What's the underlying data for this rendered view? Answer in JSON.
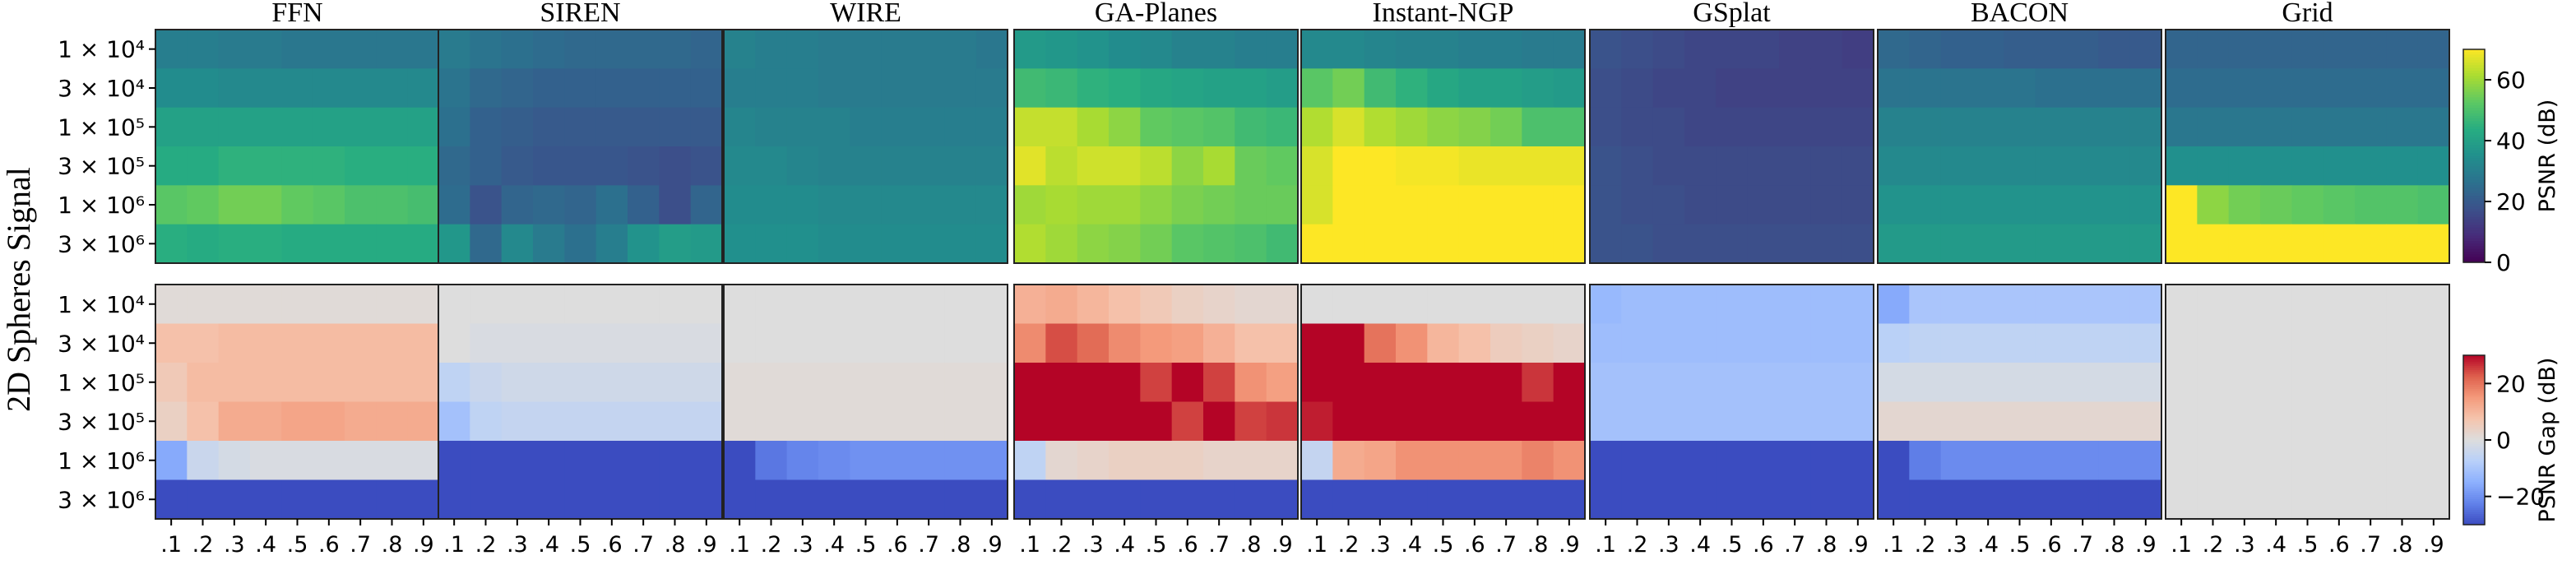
{
  "figure": {
    "row_label": "2D Spheres Signal"
  },
  "chart_data": {
    "type": "heatmap",
    "panels": [
      "FFN",
      "SIREN",
      "WIRE",
      "GA-Planes",
      "Instant-NGP",
      "GSplat",
      "BACON",
      "Grid"
    ],
    "y_tick_labels": [
      "1 × 10⁴",
      "3 × 10⁴",
      "1 × 10⁵",
      "3 × 10⁵",
      "1 × 10⁶",
      "3 × 10⁶"
    ],
    "x_tick_labels": [
      ".1",
      ".2",
      ".3",
      ".4",
      ".5",
      ".6",
      ".7",
      ".8",
      ".9"
    ],
    "psnr": {
      "label": "PSNR (dB)",
      "range": [
        0,
        70
      ],
      "ticks": [
        0,
        20,
        40,
        60
      ],
      "colormap": "viridis",
      "panels": {
        "FFN": [
          [
            30,
            30,
            29,
            29,
            28,
            28,
            28,
            28,
            28
          ],
          [
            34,
            34,
            33,
            33,
            33,
            33,
            33,
            33,
            33
          ],
          [
            40,
            40,
            40,
            40,
            40,
            40,
            40,
            40,
            40
          ],
          [
            43,
            43,
            45,
            45,
            45,
            45,
            44,
            44,
            44
          ],
          [
            52,
            53,
            55,
            55,
            53,
            52,
            50,
            50,
            49
          ],
          [
            44,
            43,
            44,
            44,
            43,
            43,
            43,
            43,
            43
          ]
        ],
        "SIREN": [
          [
            29,
            27,
            26,
            25,
            24,
            24,
            24,
            24,
            23
          ],
          [
            27,
            24,
            23,
            22,
            22,
            22,
            22,
            22,
            22
          ],
          [
            26,
            22,
            21,
            20,
            20,
            20,
            20,
            20,
            20
          ],
          [
            24,
            22,
            20,
            19,
            19,
            19,
            18,
            17,
            18
          ],
          [
            25,
            18,
            23,
            24,
            23,
            26,
            22,
            17,
            23
          ],
          [
            37,
            24,
            33,
            29,
            26,
            30,
            36,
            39,
            38
          ]
        ],
        "WIRE": [
          [
            31,
            30,
            30,
            29,
            29,
            29,
            29,
            29,
            28
          ],
          [
            30,
            30,
            30,
            29,
            29,
            29,
            29,
            29,
            29
          ],
          [
            32,
            31,
            31,
            31,
            30,
            30,
            30,
            30,
            30
          ],
          [
            33,
            33,
            32,
            31,
            31,
            31,
            31,
            31,
            31
          ],
          [
            34,
            34,
            34,
            33,
            33,
            33,
            33,
            33,
            33
          ],
          [
            35,
            35,
            35,
            34,
            34,
            34,
            34,
            34,
            34
          ]
        ],
        "GA-Planes": [
          [
            38,
            37,
            36,
            34,
            33,
            31,
            31,
            30,
            30
          ],
          [
            48,
            47,
            45,
            44,
            42,
            41,
            40,
            40,
            39
          ],
          [
            64,
            64,
            61,
            58,
            53,
            52,
            51,
            48,
            47
          ],
          [
            67,
            63,
            65,
            65,
            63,
            58,
            61,
            54,
            53
          ],
          [
            60,
            61,
            60,
            60,
            58,
            56,
            55,
            54,
            54
          ],
          [
            62,
            60,
            58,
            57,
            55,
            52,
            51,
            50,
            48
          ]
        ],
        "Instant-NGP": [
          [
            33,
            33,
            32,
            31,
            31,
            30,
            30,
            29,
            29
          ],
          [
            52,
            55,
            48,
            45,
            42,
            40,
            40,
            39,
            38
          ],
          [
            62,
            66,
            62,
            60,
            58,
            57,
            55,
            50,
            50
          ],
          [
            66,
            70,
            70,
            69,
            69,
            68,
            68,
            68,
            68
          ],
          [
            66,
            70,
            70,
            70,
            70,
            70,
            70,
            70,
            70
          ],
          [
            70,
            70,
            70,
            70,
            70,
            70,
            70,
            70,
            70
          ]
        ],
        "GSplat": [
          [
            18,
            17,
            16,
            15,
            15,
            15,
            14,
            14,
            13
          ],
          [
            17,
            16,
            15,
            15,
            14,
            14,
            14,
            14,
            14
          ],
          [
            17,
            16,
            16,
            15,
            15,
            15,
            15,
            15,
            15
          ],
          [
            18,
            17,
            16,
            16,
            16,
            16,
            16,
            16,
            16
          ],
          [
            18,
            17,
            17,
            16,
            16,
            16,
            16,
            16,
            16
          ],
          [
            18,
            18,
            17,
            17,
            17,
            17,
            17,
            17,
            17
          ]
        ],
        "BACON": [
          [
            24,
            23,
            22,
            22,
            21,
            21,
            21,
            20,
            20
          ],
          [
            27,
            27,
            27,
            27,
            27,
            26,
            26,
            26,
            26
          ],
          [
            31,
            31,
            31,
            31,
            31,
            31,
            31,
            31,
            31
          ],
          [
            33,
            33,
            33,
            33,
            33,
            33,
            33,
            33,
            33
          ],
          [
            36,
            36,
            36,
            36,
            36,
            36,
            36,
            36,
            36
          ],
          [
            38,
            38,
            38,
            38,
            38,
            38,
            38,
            38,
            38
          ]
        ],
        "Grid": [
          [
            23,
            23,
            23,
            23,
            23,
            23,
            23,
            23,
            23
          ],
          [
            25,
            25,
            25,
            25,
            25,
            25,
            25,
            25,
            25
          ],
          [
            28,
            28,
            28,
            28,
            28,
            28,
            28,
            28,
            28
          ],
          [
            35,
            35,
            35,
            35,
            35,
            35,
            35,
            35,
            35
          ],
          [
            70,
            58,
            55,
            54,
            53,
            52,
            51,
            51,
            50
          ],
          [
            70,
            70,
            70,
            70,
            70,
            70,
            70,
            70,
            70
          ]
        ]
      }
    },
    "gap": {
      "label": "PSNR Gap (dB)",
      "range": [
        -30,
        30
      ],
      "ticks": [
        -20,
        0,
        20
      ],
      "colormap": "coolwarm",
      "panels": {
        "FFN": [
          [
            1,
            1,
            1,
            1,
            1,
            1,
            1,
            1,
            1
          ],
          [
            8,
            8,
            9,
            9,
            9,
            9,
            9,
            9,
            9
          ],
          [
            6,
            9,
            9,
            9,
            9,
            9,
            9,
            9,
            9
          ],
          [
            4,
            8,
            12,
            12,
            13,
            13,
            12,
            12,
            12
          ],
          [
            -16,
            -4,
            -2,
            -1,
            -1,
            -1,
            -1,
            -1,
            -1
          ],
          [
            -32,
            -32,
            -32,
            -32,
            -32,
            -32,
            -32,
            -32,
            -32
          ]
        ],
        "SIREN": [
          [
            0,
            0,
            0,
            0,
            0,
            0,
            0,
            0,
            0
          ],
          [
            0,
            -1,
            -1,
            -1,
            -1,
            -1,
            -1,
            -1,
            -1
          ],
          [
            -6,
            -4,
            -3,
            -3,
            -3,
            -3,
            -3,
            -3,
            -3
          ],
          [
            -11,
            -6,
            -5,
            -5,
            -5,
            -5,
            -5,
            -5,
            -5
          ],
          [
            -31,
            -31,
            -31,
            -34,
            -31,
            -34,
            -31,
            -31,
            -31
          ],
          [
            -32,
            -32,
            -32,
            -32,
            -32,
            -32,
            -32,
            -32,
            -32
          ]
        ],
        "WIRE": [
          [
            0,
            0,
            0,
            0,
            0,
            0,
            0,
            0,
            0
          ],
          [
            0,
            0,
            0,
            0,
            0,
            0,
            0,
            0,
            0
          ],
          [
            1,
            1,
            1,
            1,
            1,
            1,
            1,
            1,
            1
          ],
          [
            1,
            1,
            1,
            1,
            1,
            1,
            1,
            1,
            1
          ],
          [
            -32,
            -24,
            -22,
            -21,
            -20,
            -20,
            -20,
            -20,
            -20
          ],
          [
            -32,
            -32,
            -32,
            -32,
            -32,
            -32,
            -32,
            -32,
            -32
          ]
        ],
        "GA-Planes": [
          [
            11,
            12,
            10,
            8,
            6,
            4,
            3,
            2,
            2
          ],
          [
            17,
            24,
            21,
            17,
            15,
            14,
            11,
            8,
            8
          ],
          [
            30,
            30,
            30,
            30,
            25,
            30,
            25,
            16,
            14
          ],
          [
            30,
            30,
            30,
            30,
            30,
            25,
            32,
            25,
            26
          ],
          [
            -6,
            2,
            3,
            4,
            4,
            4,
            3,
            3,
            3
          ],
          [
            -32,
            -32,
            -32,
            -32,
            -32,
            -32,
            -32,
            -32,
            -32
          ]
        ],
        "Instant-NGP": [
          [
            0,
            0,
            0,
            0,
            0,
            0,
            0,
            0,
            0
          ],
          [
            30,
            32,
            20,
            16,
            10,
            8,
            5,
            4,
            3
          ],
          [
            30,
            30,
            30,
            30,
            30,
            30,
            30,
            26,
            30
          ],
          [
            28,
            30,
            30,
            30,
            30,
            30,
            30,
            30,
            30
          ],
          [
            -5,
            12,
            13,
            16,
            16,
            16,
            16,
            18,
            16
          ],
          [
            -32,
            -32,
            -32,
            -32,
            -32,
            -32,
            -32,
            -32,
            -32
          ]
        ],
        "GSplat": [
          [
            -13,
            -12,
            -12,
            -12,
            -12,
            -12,
            -12,
            -12,
            -12
          ],
          [
            -12,
            -12,
            -12,
            -12,
            -12,
            -12,
            -12,
            -12,
            -12
          ],
          [
            -11,
            -11,
            -11,
            -11,
            -11,
            -11,
            -11,
            -11,
            -11
          ],
          [
            -11,
            -11,
            -11,
            -11,
            -11,
            -11,
            -11,
            -11,
            -11
          ],
          [
            -32,
            -32,
            -32,
            -32,
            -32,
            -32,
            -32,
            -32,
            -32
          ],
          [
            -32,
            -32,
            -32,
            -32,
            -32,
            -32,
            -32,
            -32,
            -32
          ]
        ],
        "BACON": [
          [
            -16,
            -10,
            -10,
            -10,
            -10,
            -10,
            -10,
            -10,
            -10
          ],
          [
            -7,
            -6,
            -6,
            -6,
            -6,
            -6,
            -6,
            -6,
            -6
          ],
          [
            -2,
            -2,
            -2,
            -2,
            -2,
            -2,
            -2,
            -2,
            -2
          ],
          [
            2,
            2,
            2,
            2,
            2,
            2,
            2,
            2,
            2
          ],
          [
            -32,
            -23,
            -21,
            -21,
            -21,
            -21,
            -21,
            -21,
            -21
          ],
          [
            -32,
            -32,
            -32,
            -32,
            -32,
            -32,
            -32,
            -32,
            -32
          ]
        ],
        "Grid": [
          [
            0,
            0,
            0,
            0,
            0,
            0,
            0,
            0,
            0
          ],
          [
            0,
            0,
            0,
            0,
            0,
            0,
            0,
            0,
            0
          ],
          [
            0,
            0,
            0,
            0,
            0,
            0,
            0,
            0,
            0
          ],
          [
            0,
            0,
            0,
            0,
            0,
            0,
            0,
            0,
            0
          ],
          [
            0,
            0,
            0,
            0,
            0,
            0,
            0,
            0,
            0
          ],
          [
            0,
            0,
            0,
            0,
            0,
            0,
            0,
            0,
            0
          ]
        ]
      }
    }
  }
}
